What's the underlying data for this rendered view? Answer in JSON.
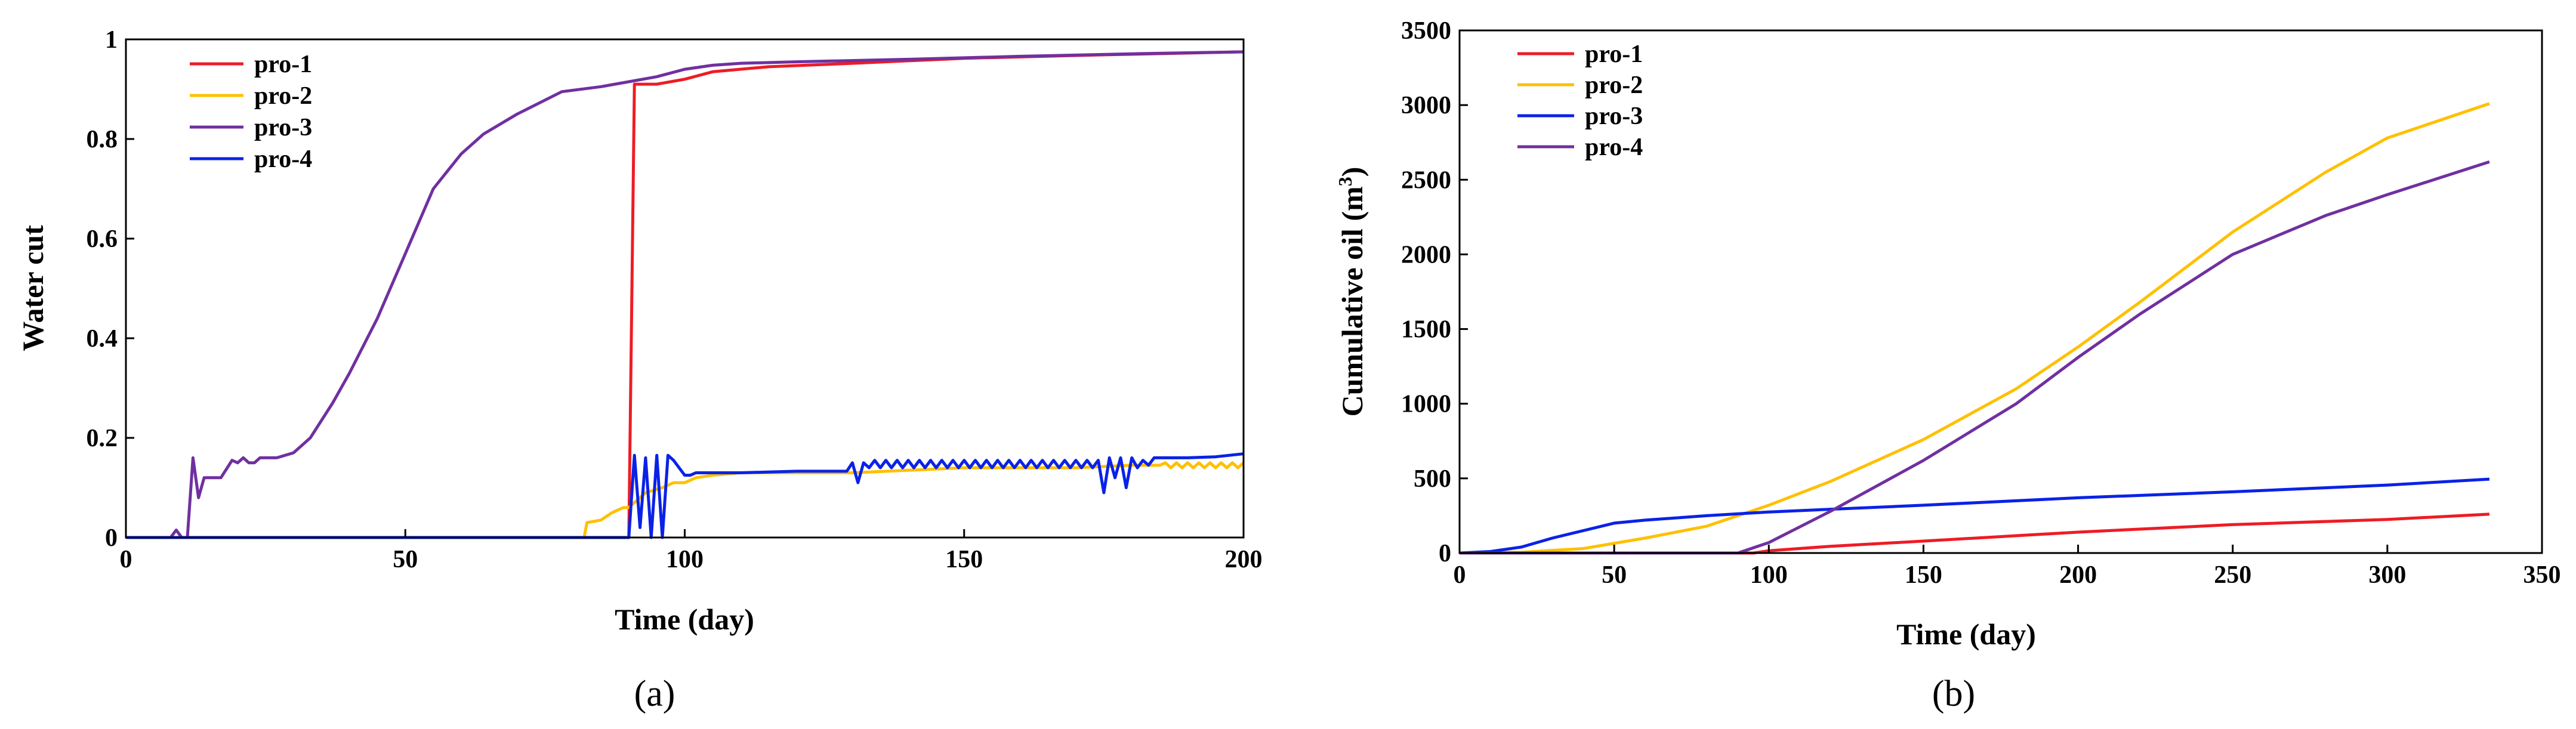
{
  "chart_data": [
    {
      "type": "line",
      "panel_label": "(a)",
      "xlabel": "Time (day)",
      "ylabel": "Water cut",
      "xlim": [
        0,
        200
      ],
      "ylim": [
        0,
        1
      ],
      "xticks": [
        "0",
        "50",
        "100",
        "150",
        "200"
      ],
      "yticks": [
        "0",
        "0.2",
        "0.4",
        "0.6",
        "0.8",
        "1"
      ],
      "legend_position": "top-left",
      "series": [
        {
          "name": "pro-1",
          "color": "#ee1c25",
          "points": [
            [
              0,
              0
            ],
            [
              90,
              0
            ],
            [
              90.5,
              0.45
            ],
            [
              91,
              0.91
            ],
            [
              95,
              0.91
            ],
            [
              100,
              0.92
            ],
            [
              105,
              0.935
            ],
            [
              115,
              0.945
            ],
            [
              130,
              0.952
            ],
            [
              150,
              0.962
            ],
            [
              175,
              0.969
            ],
            [
              200,
              0.975
            ]
          ]
        },
        {
          "name": "pro-2",
          "color": "#ffc000",
          "points": [
            [
              0,
              0
            ],
            [
              82,
              0
            ],
            [
              82.5,
              0.03
            ],
            [
              85,
              0.035
            ],
            [
              87,
              0.05
            ],
            [
              89,
              0.06
            ],
            [
              90,
              0.06
            ],
            [
              91,
              0.07
            ],
            [
              93,
              0.09
            ],
            [
              96,
              0.1
            ],
            [
              98,
              0.11
            ],
            [
              100,
              0.11
            ],
            [
              102,
              0.12
            ],
            [
              105,
              0.125
            ],
            [
              110,
              0.13
            ],
            [
              120,
              0.13
            ],
            [
              130,
              0.13
            ],
            [
              140,
              0.135
            ],
            [
              150,
              0.14
            ],
            [
              160,
              0.14
            ],
            [
              170,
              0.14
            ],
            [
              180,
              0.145
            ],
            [
              185,
              0.145
            ],
            [
              186,
              0.15
            ],
            [
              187,
              0.14
            ],
            [
              188,
              0.15
            ],
            [
              189,
              0.14
            ],
            [
              190,
              0.15
            ],
            [
              191,
              0.14
            ],
            [
              192,
              0.15
            ],
            [
              193,
              0.14
            ],
            [
              194,
              0.15
            ],
            [
              195,
              0.14
            ],
            [
              196,
              0.15
            ],
            [
              197,
              0.14
            ],
            [
              198,
              0.15
            ],
            [
              199,
              0.14
            ],
            [
              200,
              0.15
            ]
          ]
        },
        {
          "name": "pro-3",
          "color": "#7030a0",
          "points": [
            [
              0,
              0
            ],
            [
              8,
              0
            ],
            [
              9,
              0.015
            ],
            [
              10,
              0
            ],
            [
              11,
              0
            ],
            [
              12,
              0.16
            ],
            [
              13,
              0.08
            ],
            [
              14,
              0.12
            ],
            [
              17,
              0.12
            ],
            [
              19,
              0.155
            ],
            [
              20,
              0.15
            ],
            [
              21,
              0.16
            ],
            [
              22,
              0.15
            ],
            [
              23,
              0.15
            ],
            [
              24,
              0.16
            ],
            [
              27,
              0.16
            ],
            [
              30,
              0.17
            ],
            [
              33,
              0.2
            ],
            [
              37,
              0.27
            ],
            [
              40,
              0.33
            ],
            [
              45,
              0.44
            ],
            [
              50,
              0.57
            ],
            [
              55,
              0.7
            ],
            [
              60,
              0.77
            ],
            [
              64,
              0.81
            ],
            [
              70,
              0.85
            ],
            [
              78,
              0.895
            ],
            [
              85,
              0.905
            ],
            [
              90,
              0.915
            ],
            [
              95,
              0.925
            ],
            [
              100,
              0.94
            ],
            [
              105,
              0.948
            ],
            [
              110,
              0.952
            ],
            [
              120,
              0.955
            ],
            [
              140,
              0.96
            ],
            [
              160,
              0.966
            ],
            [
              180,
              0.971
            ],
            [
              200,
              0.975
            ]
          ]
        },
        {
          "name": "pro-4",
          "color": "#0a22e6",
          "points": [
            [
              0,
              0
            ],
            [
              90,
              0
            ],
            [
              91,
              0.165
            ],
            [
              92,
              0.02
            ],
            [
              93,
              0.16
            ],
            [
              94,
              0
            ],
            [
              95,
              0.165
            ],
            [
              96,
              0
            ],
            [
              97,
              0.165
            ],
            [
              98,
              0.155
            ],
            [
              99,
              0.14
            ],
            [
              100,
              0.125
            ],
            [
              101,
              0.125
            ],
            [
              102,
              0.13
            ],
            [
              110,
              0.13
            ],
            [
              120,
              0.133
            ],
            [
              129,
              0.133
            ],
            [
              130,
              0.15
            ],
            [
              131,
              0.11
            ],
            [
              132,
              0.15
            ],
            [
              133,
              0.14
            ],
            [
              134,
              0.155
            ],
            [
              135,
              0.14
            ],
            [
              136,
              0.155
            ],
            [
              137,
              0.14
            ],
            [
              138,
              0.155
            ],
            [
              139,
              0.14
            ],
            [
              140,
              0.155
            ],
            [
              141,
              0.14
            ],
            [
              142,
              0.155
            ],
            [
              143,
              0.14
            ],
            [
              144,
              0.155
            ],
            [
              145,
              0.14
            ],
            [
              146,
              0.155
            ],
            [
              147,
              0.14
            ],
            [
              148,
              0.155
            ],
            [
              149,
              0.14
            ],
            [
              150,
              0.155
            ],
            [
              151,
              0.14
            ],
            [
              152,
              0.155
            ],
            [
              153,
              0.14
            ],
            [
              154,
              0.155
            ],
            [
              155,
              0.14
            ],
            [
              156,
              0.155
            ],
            [
              157,
              0.14
            ],
            [
              158,
              0.155
            ],
            [
              159,
              0.14
            ],
            [
              160,
              0.155
            ],
            [
              161,
              0.14
            ],
            [
              162,
              0.155
            ],
            [
              163,
              0.14
            ],
            [
              164,
              0.155
            ],
            [
              165,
              0.14
            ],
            [
              166,
              0.155
            ],
            [
              167,
              0.14
            ],
            [
              168,
              0.155
            ],
            [
              169,
              0.14
            ],
            [
              170,
              0.155
            ],
            [
              171,
              0.14
            ],
            [
              172,
              0.155
            ],
            [
              173,
              0.14
            ],
            [
              174,
              0.155
            ],
            [
              175,
              0.09
            ],
            [
              176,
              0.16
            ],
            [
              177,
              0.12
            ],
            [
              178,
              0.16
            ],
            [
              179,
              0.1
            ],
            [
              180,
              0.16
            ],
            [
              181,
              0.14
            ],
            [
              182,
              0.155
            ],
            [
              183,
              0.145
            ],
            [
              184,
              0.16
            ],
            [
              190,
              0.16
            ],
            [
              195,
              0.162
            ],
            [
              200,
              0.168
            ]
          ]
        }
      ]
    },
    {
      "type": "line",
      "panel_label": "(b)",
      "xlabel": "Time (day)",
      "ylabel": "Cumulative oil (m",
      "ylabel_sup": "3",
      "ylabel_end": ")",
      "xlim": [
        0,
        350
      ],
      "ylim": [
        0,
        3500
      ],
      "xticks": [
        "0",
        "50",
        "100",
        "150",
        "200",
        "250",
        "300",
        "350"
      ],
      "yticks": [
        "0",
        "500",
        "1000",
        "1500",
        "2000",
        "2500",
        "3000",
        "3500"
      ],
      "legend_position": "top-left",
      "series": [
        {
          "name": "pro-1",
          "color": "#ee1c25",
          "points": [
            [
              0,
              0
            ],
            [
              95,
              0
            ],
            [
              100,
              15
            ],
            [
              120,
              45
            ],
            [
              150,
              80
            ],
            [
              200,
              140
            ],
            [
              250,
              190
            ],
            [
              300,
              225
            ],
            [
              333,
              260
            ]
          ]
        },
        {
          "name": "pro-2",
          "color": "#ffc000",
          "points": [
            [
              0,
              0
            ],
            [
              20,
              5
            ],
            [
              40,
              30
            ],
            [
              60,
              100
            ],
            [
              80,
              180
            ],
            [
              100,
              320
            ],
            [
              120,
              480
            ],
            [
              150,
              760
            ],
            [
              180,
              1100
            ],
            [
              200,
              1380
            ],
            [
              220,
              1680
            ],
            [
              250,
              2150
            ],
            [
              280,
              2550
            ],
            [
              300,
              2780
            ],
            [
              333,
              3010
            ]
          ]
        },
        {
          "name": "pro-3",
          "color": "#0a22e6",
          "points": [
            [
              0,
              0
            ],
            [
              10,
              10
            ],
            [
              20,
              40
            ],
            [
              30,
              100
            ],
            [
              40,
              150
            ],
            [
              50,
              200
            ],
            [
              60,
              220
            ],
            [
              80,
              250
            ],
            [
              100,
              275
            ],
            [
              150,
              320
            ],
            [
              200,
              370
            ],
            [
              250,
              410
            ],
            [
              300,
              455
            ],
            [
              333,
              495
            ]
          ]
        },
        {
          "name": "pro-4",
          "color": "#7030a0",
          "points": [
            [
              0,
              0
            ],
            [
              90,
              0
            ],
            [
              100,
              70
            ],
            [
              120,
              280
            ],
            [
              150,
              620
            ],
            [
              180,
              1000
            ],
            [
              200,
              1310
            ],
            [
              220,
              1600
            ],
            [
              250,
              2000
            ],
            [
              280,
              2260
            ],
            [
              300,
              2400
            ],
            [
              333,
              2620
            ]
          ]
        }
      ]
    }
  ]
}
